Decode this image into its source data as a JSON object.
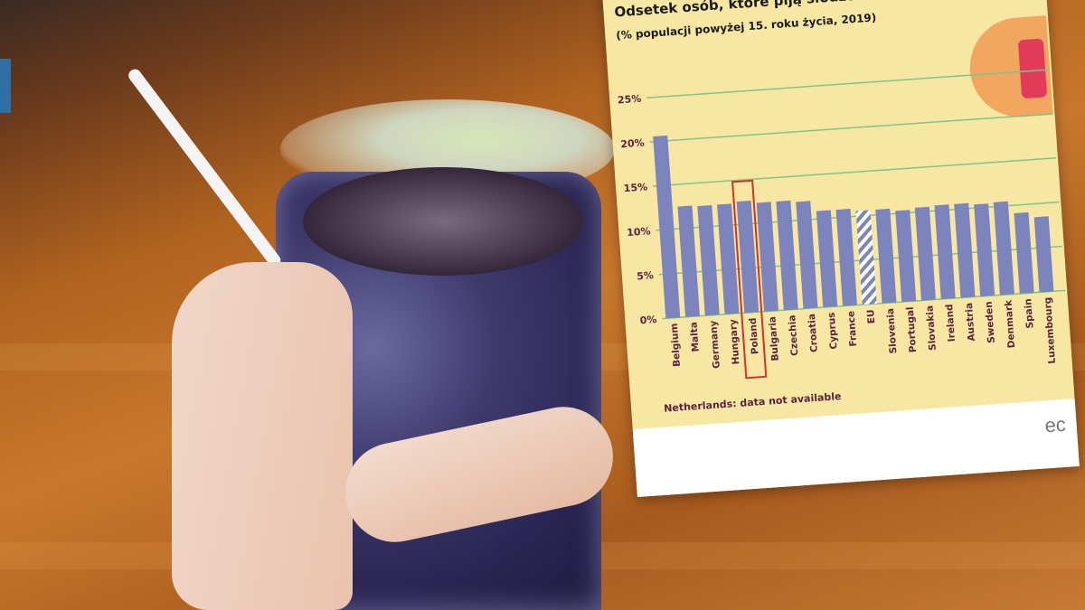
{
  "chart_data": {
    "type": "bar",
    "title": "Odsetek osób, które piją słodzone napoje codzien",
    "subtitle": "(% populacji powyżej 15. roku życia, 2019)",
    "categories": [
      "Belgium",
      "Malta",
      "Germany",
      "Hungary",
      "Poland",
      "Bulgaria",
      "Czechia",
      "Croatia",
      "Cyprus",
      "France",
      "EU",
      "Slovenia",
      "Portugal",
      "Slovakia",
      "Ireland",
      "Austria",
      "Sweden",
      "Denmark",
      "Spain",
      "Luxembourg"
    ],
    "values": [
      20.6,
      12.5,
      12.4,
      12.4,
      12.6,
      12.3,
      12.3,
      12.1,
      10.9,
      10.9,
      10.6,
      10.6,
      10.3,
      10.5,
      10.6,
      10.6,
      10.4,
      10.5,
      9.1,
      8.5
    ],
    "y_ticks": [
      "0%",
      "5%",
      "10%",
      "15%",
      "20%",
      "25%"
    ],
    "ylim": [
      0,
      25
    ],
    "grid": true,
    "highlighted": "Poland",
    "hatched": "EU",
    "footnote": "Netherlands: data not available",
    "colors": {
      "bar": "#7b84bd",
      "grid": "#7cc58a",
      "highlight": "#d0332b",
      "background": "#f7e7a3",
      "tick_label": "#5a2340"
    }
  },
  "branding": "ec"
}
